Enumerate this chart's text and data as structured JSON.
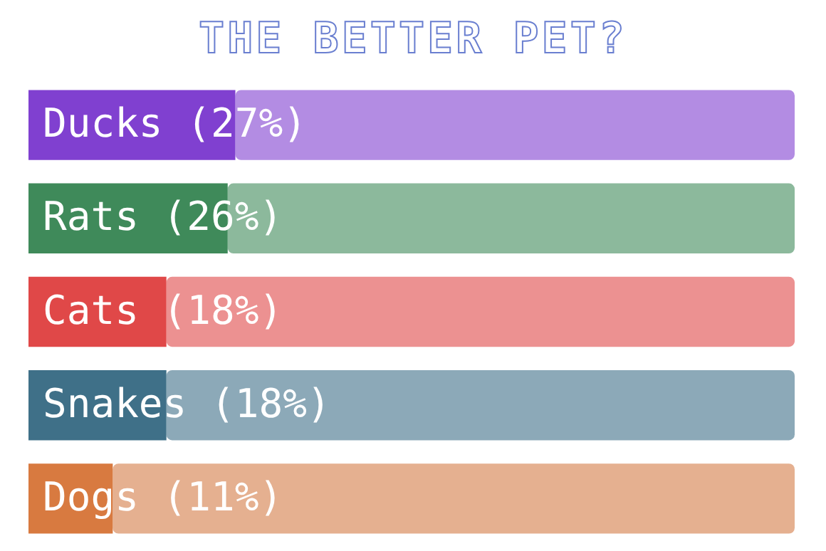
{
  "chart_data": {
    "type": "bar",
    "orientation": "horizontal",
    "stacked": true,
    "title": "THE BETTER PET?",
    "categories": [
      "Ducks",
      "Rats",
      "Cats",
      "Snakes",
      "Dogs"
    ],
    "series": [
      {
        "colors": [
          "#8040d0",
          "#3f8a5a",
          "#e04848",
          "#3f7088",
          "#d87a40"
        ],
        "values": [
          27,
          26,
          18,
          18,
          11
        ],
        "value_labels": [
          "(27%)",
          "(26%)",
          "(18%)",
          "(18%)",
          "(11%)"
        ]
      },
      {
        "colors": [
          "#b38ce3",
          "#8cb99c",
          "#ec9191",
          "#8ca9b8",
          "#e5b090"
        ],
        "values": [
          73,
          74,
          82,
          82,
          89
        ]
      }
    ],
    "tick_labels": false
  }
}
